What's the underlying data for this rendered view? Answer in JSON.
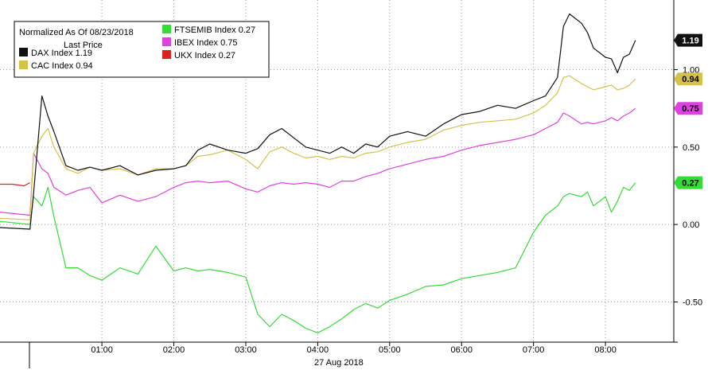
{
  "chart_data": {
    "type": "line",
    "title": "Normalized As Of 08/23/2018",
    "subtitle": "Last Price",
    "date_label": "27 Aug 2018",
    "grid": true,
    "legend_placement": "top-left",
    "x_ticks": [
      "01:00",
      "02:00",
      "03:00",
      "04:00",
      "05:00",
      "06:00",
      "07:00",
      "08:00"
    ],
    "y_ticks": [
      "1.00",
      "0.50",
      "0.00",
      "-0.50"
    ],
    "ylim": [
      -0.76,
      1.45
    ],
    "xlim": [
      "23:35",
      "08:57"
    ],
    "series": [
      {
        "name": "DAX Index",
        "last": "1.19",
        "color": "#111111",
        "tag_text_color": "#ffffff",
        "x": [
          "23:35",
          "00:00",
          "00:03",
          "00:10",
          "00:15",
          "00:20",
          "00:30",
          "00:40",
          "00:50",
          "01:00",
          "01:15",
          "01:30",
          "01:45",
          "02:00",
          "02:10",
          "02:20",
          "02:30",
          "02:45",
          "03:00",
          "03:10",
          "03:20",
          "03:30",
          "03:40",
          "03:50",
          "04:00",
          "04:10",
          "04:20",
          "04:30",
          "04:40",
          "04:50",
          "05:00",
          "05:15",
          "05:30",
          "05:45",
          "06:00",
          "06:15",
          "06:30",
          "06:45",
          "07:00",
          "07:10",
          "07:20",
          "07:25",
          "07:30",
          "07:40",
          "07:45",
          "07:50",
          "08:00",
          "08:05",
          "08:10",
          "08:15",
          "08:20",
          "08:25"
        ],
        "values": [
          -0.02,
          -0.03,
          0.2,
          0.83,
          0.7,
          0.6,
          0.38,
          0.35,
          0.37,
          0.35,
          0.38,
          0.32,
          0.35,
          0.36,
          0.38,
          0.48,
          0.52,
          0.48,
          0.46,
          0.49,
          0.58,
          0.62,
          0.56,
          0.5,
          0.48,
          0.46,
          0.5,
          0.46,
          0.52,
          0.5,
          0.57,
          0.6,
          0.57,
          0.65,
          0.71,
          0.73,
          0.77,
          0.75,
          0.8,
          0.83,
          0.95,
          1.28,
          1.36,
          1.3,
          1.24,
          1.14,
          1.08,
          1.07,
          0.98,
          1.08,
          1.1,
          1.19
        ]
      },
      {
        "name": "CAC Index",
        "last": "0.94",
        "color": "#d4c24a",
        "tag_text_color": "#000000",
        "x": [
          "23:35",
          "00:00",
          "00:03",
          "00:10",
          "00:15",
          "00:20",
          "00:30",
          "00:40",
          "00:50",
          "01:00",
          "01:15",
          "01:30",
          "01:45",
          "02:00",
          "02:10",
          "02:20",
          "02:30",
          "02:45",
          "03:00",
          "03:10",
          "03:20",
          "03:30",
          "03:40",
          "03:50",
          "04:00",
          "04:10",
          "04:20",
          "04:30",
          "04:40",
          "04:50",
          "05:00",
          "05:15",
          "05:30",
          "05:45",
          "06:00",
          "06:15",
          "06:30",
          "06:45",
          "07:00",
          "07:10",
          "07:20",
          "07:25",
          "07:30",
          "07:40",
          "07:45",
          "07:50",
          "08:00",
          "08:05",
          "08:10",
          "08:15",
          "08:20",
          "08:25"
        ],
        "values": [
          0.04,
          0.03,
          0.46,
          0.57,
          0.62,
          0.5,
          0.36,
          0.33,
          0.37,
          0.35,
          0.36,
          0.32,
          0.36,
          0.36,
          0.38,
          0.44,
          0.45,
          0.48,
          0.42,
          0.36,
          0.47,
          0.5,
          0.46,
          0.43,
          0.44,
          0.42,
          0.44,
          0.43,
          0.46,
          0.47,
          0.5,
          0.53,
          0.55,
          0.61,
          0.64,
          0.66,
          0.67,
          0.68,
          0.72,
          0.77,
          0.85,
          0.95,
          0.96,
          0.91,
          0.89,
          0.87,
          0.89,
          0.9,
          0.87,
          0.88,
          0.9,
          0.94
        ]
      },
      {
        "name": "IBEX Index",
        "last": "0.75",
        "color": "#e040e0",
        "tag_text_color": "#000000",
        "x": [
          "23:35",
          "00:00",
          "00:03",
          "00:10",
          "00:15",
          "00:20",
          "00:30",
          "00:40",
          "00:50",
          "01:00",
          "01:15",
          "01:30",
          "01:45",
          "02:00",
          "02:10",
          "02:20",
          "02:30",
          "02:45",
          "03:00",
          "03:10",
          "03:20",
          "03:30",
          "03:40",
          "03:50",
          "04:00",
          "04:10",
          "04:20",
          "04:30",
          "04:40",
          "04:50",
          "05:00",
          "05:15",
          "05:30",
          "05:45",
          "06:00",
          "06:15",
          "06:30",
          "06:45",
          "07:00",
          "07:10",
          "07:20",
          "07:25",
          "07:30",
          "07:40",
          "07:45",
          "07:50",
          "08:00",
          "08:05",
          "08:10",
          "08:15",
          "08:20",
          "08:25"
        ],
        "values": [
          0.08,
          0.06,
          0.46,
          0.36,
          0.33,
          0.24,
          0.19,
          0.22,
          0.24,
          0.14,
          0.19,
          0.15,
          0.18,
          0.24,
          0.27,
          0.28,
          0.27,
          0.28,
          0.23,
          0.21,
          0.25,
          0.27,
          0.26,
          0.27,
          0.26,
          0.24,
          0.28,
          0.28,
          0.31,
          0.33,
          0.36,
          0.39,
          0.42,
          0.44,
          0.48,
          0.51,
          0.53,
          0.55,
          0.58,
          0.62,
          0.66,
          0.72,
          0.7,
          0.65,
          0.66,
          0.65,
          0.67,
          0.69,
          0.67,
          0.7,
          0.72,
          0.75
        ]
      },
      {
        "name": "FTSEMIB Index",
        "last": "0.27",
        "color": "#33dd33",
        "tag_text_color": "#000000",
        "x": [
          "23:35",
          "00:00",
          "00:03",
          "00:10",
          "00:15",
          "00:20",
          "00:30",
          "00:40",
          "00:50",
          "01:00",
          "01:15",
          "01:30",
          "01:45",
          "02:00",
          "02:10",
          "02:20",
          "02:30",
          "02:45",
          "03:00",
          "03:10",
          "03:20",
          "03:30",
          "03:40",
          "03:50",
          "04:00",
          "04:10",
          "04:20",
          "04:30",
          "04:40",
          "04:50",
          "05:00",
          "05:15",
          "05:30",
          "05:45",
          "06:00",
          "06:15",
          "06:30",
          "06:45",
          "07:00",
          "07:10",
          "07:20",
          "07:25",
          "07:30",
          "07:40",
          "07:45",
          "07:50",
          "08:00",
          "08:05",
          "08:10",
          "08:15",
          "08:20",
          "08:25"
        ],
        "values": [
          0.02,
          0.0,
          0.18,
          0.12,
          0.24,
          0.05,
          -0.28,
          -0.28,
          -0.33,
          -0.36,
          -0.28,
          -0.32,
          -0.14,
          -0.3,
          -0.28,
          -0.3,
          -0.29,
          -0.31,
          -0.34,
          -0.58,
          -0.66,
          -0.58,
          -0.62,
          -0.67,
          -0.7,
          -0.66,
          -0.61,
          -0.55,
          -0.51,
          -0.54,
          -0.49,
          -0.45,
          -0.4,
          -0.39,
          -0.35,
          -0.33,
          -0.31,
          -0.28,
          -0.05,
          0.06,
          0.12,
          0.18,
          0.2,
          0.18,
          0.21,
          0.12,
          0.18,
          0.08,
          0.15,
          0.24,
          0.22,
          0.27
        ]
      },
      {
        "name": "UKX Index",
        "last": "0.27",
        "color": "#dd2222",
        "tag_text_color": "#000000",
        "x": [
          "23:35",
          "23:45",
          "23:55",
          "00:00"
        ],
        "values": [
          0.26,
          0.26,
          0.25,
          0.27
        ]
      }
    ]
  }
}
